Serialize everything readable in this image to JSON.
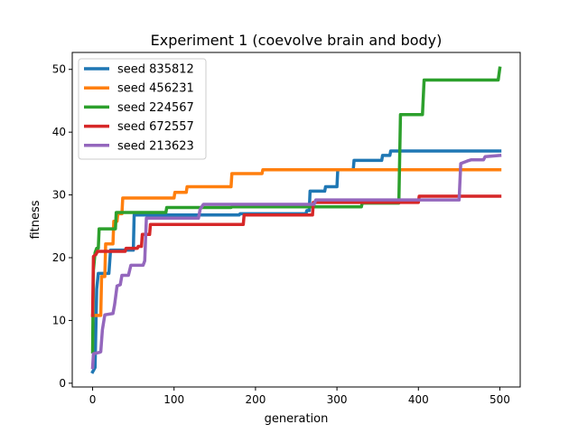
{
  "chart_data": {
    "type": "line",
    "title": "Experiment 1 (coevolve brain and body)",
    "xlabel": "generation",
    "ylabel": "fitness",
    "xlim": [
      -25,
      525
    ],
    "ylim": [
      -0.6,
      52.7
    ],
    "xticks": [
      0,
      100,
      200,
      300,
      400,
      500
    ],
    "yticks": [
      0,
      10,
      20,
      30,
      40,
      50
    ],
    "grid": false,
    "legend_position": "upper-left",
    "series": [
      {
        "name": "seed 835812",
        "color": "#1f77b4",
        "points": [
          [
            0,
            1.8
          ],
          [
            3,
            2.5
          ],
          [
            5,
            15
          ],
          [
            7,
            17.5
          ],
          [
            20,
            17.5
          ],
          [
            22,
            21.2
          ],
          [
            50,
            21.2
          ],
          [
            51,
            26.8
          ],
          [
            180,
            26.8
          ],
          [
            181,
            27
          ],
          [
            262,
            27
          ],
          [
            263,
            27.5
          ],
          [
            266,
            27.5
          ],
          [
            267,
            30.6
          ],
          [
            285,
            30.6
          ],
          [
            286,
            31.3
          ],
          [
            300,
            31.3
          ],
          [
            301,
            34
          ],
          [
            320,
            34
          ],
          [
            321,
            35.5
          ],
          [
            355,
            35.5
          ],
          [
            356,
            36.3
          ],
          [
            365,
            36.3
          ],
          [
            366,
            37
          ],
          [
            500,
            37
          ]
        ]
      },
      {
        "name": "seed 456231",
        "color": "#ff7f0e",
        "points": [
          [
            0,
            10.8
          ],
          [
            10,
            10.8
          ],
          [
            11,
            17
          ],
          [
            15,
            17
          ],
          [
            16,
            22.2
          ],
          [
            25,
            22.2
          ],
          [
            26,
            25.8
          ],
          [
            30,
            25.8
          ],
          [
            31,
            27
          ],
          [
            36,
            27
          ],
          [
            37,
            29.5
          ],
          [
            100,
            29.5
          ],
          [
            101,
            30.4
          ],
          [
            115,
            30.4
          ],
          [
            116,
            31.3
          ],
          [
            170,
            31.3
          ],
          [
            171,
            33.4
          ],
          [
            208,
            33.4
          ],
          [
            209,
            34
          ],
          [
            500,
            34
          ]
        ]
      },
      {
        "name": "seed 224567",
        "color": "#2ca02c",
        "points": [
          [
            0,
            5
          ],
          [
            1,
            18
          ],
          [
            3,
            20.8
          ],
          [
            5,
            21.5
          ],
          [
            7,
            21.5
          ],
          [
            8,
            24.6
          ],
          [
            28,
            24.6
          ],
          [
            29,
            27.2
          ],
          [
            90,
            27.2
          ],
          [
            91,
            28
          ],
          [
            170,
            28
          ],
          [
            171,
            28.1
          ],
          [
            330,
            28.1
          ],
          [
            331,
            28.7
          ],
          [
            376,
            28.7
          ],
          [
            378,
            42.8
          ],
          [
            405,
            42.8
          ],
          [
            407,
            48.3
          ],
          [
            498,
            48.3
          ],
          [
            500,
            50.2
          ]
        ]
      },
      {
        "name": "seed 672557",
        "color": "#d62728",
        "points": [
          [
            0,
            10.8
          ],
          [
            1,
            20.2
          ],
          [
            4,
            20.5
          ],
          [
            6,
            21
          ],
          [
            40,
            21
          ],
          [
            41,
            21.5
          ],
          [
            55,
            21.5
          ],
          [
            56,
            21.8
          ],
          [
            60,
            21.8
          ],
          [
            61,
            23.7
          ],
          [
            70,
            23.7
          ],
          [
            71,
            25.3
          ],
          [
            185,
            25.3
          ],
          [
            186,
            26.8
          ],
          [
            270,
            26.8
          ],
          [
            271,
            28.8
          ],
          [
            400,
            28.8
          ],
          [
            401,
            29.8
          ],
          [
            500,
            29.8
          ]
        ]
      },
      {
        "name": "seed 213623",
        "color": "#9467bd",
        "points": [
          [
            0,
            2.5
          ],
          [
            1,
            4.7
          ],
          [
            8,
            4.9
          ],
          [
            10,
            5
          ],
          [
            12,
            8.5
          ],
          [
            15,
            10.9
          ],
          [
            25,
            11.1
          ],
          [
            27,
            12.5
          ],
          [
            30,
            15.5
          ],
          [
            34,
            15.7
          ],
          [
            36,
            17.2
          ],
          [
            44,
            17.2
          ],
          [
            47,
            18.8
          ],
          [
            62,
            18.8
          ],
          [
            64,
            19.5
          ],
          [
            66,
            26.3
          ],
          [
            130,
            26.3
          ],
          [
            132,
            27.7
          ],
          [
            136,
            28.5
          ],
          [
            272,
            28.5
          ],
          [
            274,
            29.2
          ],
          [
            450,
            29.2
          ],
          [
            452,
            35
          ],
          [
            460,
            35.4
          ],
          [
            465,
            35.6
          ],
          [
            480,
            35.6
          ],
          [
            482,
            36.1
          ],
          [
            500,
            36.3
          ]
        ]
      }
    ]
  }
}
